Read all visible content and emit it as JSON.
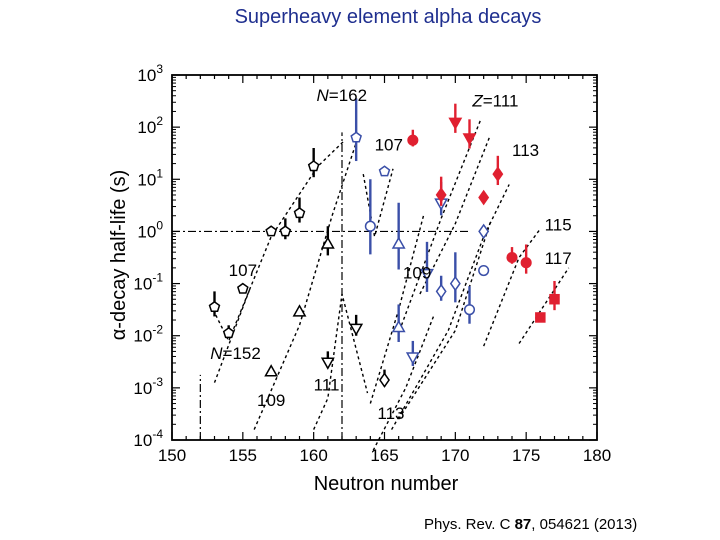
{
  "slide": {
    "title": "Superheavy element alpha decays",
    "citation_prefix": "Phys. Rev. C ",
    "citation_volume": "87",
    "citation_suffix": ", 054621 (2013)"
  },
  "colors": {
    "black": "#000000",
    "blue": "#3a4fa8",
    "red": "#e02030"
  },
  "chart_data": {
    "type": "scatter",
    "title": "",
    "xlabel": "Neutron number",
    "ylabel": "α-decay half-life (s)",
    "xlim": [
      150,
      180
    ],
    "ylim_log10": [
      -4,
      3
    ],
    "yscale": "log",
    "xticks": [
      150,
      155,
      160,
      165,
      170,
      175,
      180
    ],
    "yticks": [
      {
        "base": "10",
        "exp": "-4",
        "v": -4
      },
      {
        "base": "10",
        "exp": "-3",
        "v": -3
      },
      {
        "base": "10",
        "exp": "-2",
        "v": -2
      },
      {
        "base": "10",
        "exp": "-1",
        "v": -1
      },
      {
        "base": "10",
        "exp": "0",
        "v": 0
      },
      {
        "base": "10",
        "exp": "1",
        "v": 1
      },
      {
        "base": "10",
        "exp": "2",
        "v": 2
      },
      {
        "base": "10",
        "exp": "3",
        "v": 3
      }
    ],
    "reference_lines": [
      {
        "axis": "y",
        "value": 1,
        "label": "",
        "extent": [
          150,
          171
        ]
      },
      {
        "axis": "x",
        "value": 162,
        "label": "N=162",
        "extent_log10": [
          -4,
          1.9
        ]
      },
      {
        "axis": "x",
        "value": 152,
        "label": "N=152",
        "extent_log10": [
          -4,
          -2.75
        ]
      }
    ],
    "trend_lines": [
      {
        "name": "107",
        "x": [
          153,
          155.5
        ],
        "ylog": [
          -2.9,
          -1.1
        ]
      },
      {
        "name": "107",
        "x": [
          152.9,
          154,
          157,
          160.3,
          162.2
        ],
        "ylog": [
          -1.5,
          -2.1,
          -0.1,
          1.25,
          1.75
        ]
      },
      {
        "name": "107",
        "x": [
          163.5,
          164.3,
          165.6
        ],
        "ylog": [
          1.1,
          -0.1,
          1.2
        ]
      },
      {
        "name": "109",
        "x": [
          155.8,
          159,
          161.3,
          163
        ],
        "ylog": [
          -3.8,
          -1.8,
          0.3,
          1.7
        ]
      },
      {
        "name": "111",
        "x": [
          160,
          161,
          162,
          163.8
        ],
        "ylog": [
          -3.8,
          -3.2,
          -1.2,
          -3.1
        ]
      },
      {
        "name": "111",
        "x": [
          164,
          166,
          167.8
        ],
        "ylog": [
          -3.3,
          -1.5,
          0.35
        ]
      },
      {
        "name": "111",
        "x": [
          166.2,
          169,
          171.8
        ],
        "ylog": [
          -1.8,
          0.25,
          2.15
        ]
      },
      {
        "name": "113",
        "x": [
          164.2,
          166.5,
          168.5
        ],
        "ylog": [
          -4.2,
          -3,
          -1.6
        ]
      },
      {
        "name": "113",
        "x": [
          167.5,
          170,
          172.4
        ],
        "ylog": [
          -1.2,
          0.15,
          1.8
        ]
      },
      {
        "name": "113",
        "x": [
          165.5,
          169.5,
          172,
          173.8
        ],
        "ylog": [
          -3.8,
          -1.9,
          -0.1,
          0.9
        ]
      },
      {
        "name": "115",
        "x": [
          166,
          170,
          172.5
        ],
        "ylog": [
          -3.6,
          -1.9,
          0.2
        ]
      },
      {
        "name": "115",
        "x": [
          172,
          174.5,
          176
        ],
        "ylog": [
          -2.2,
          -0.5,
          0.05
        ]
      },
      {
        "name": "117",
        "x": [
          174.5,
          178
        ],
        "ylog": [
          -2.15,
          -0.7
        ]
      }
    ],
    "series": [
      {
        "name": "107",
        "marker": "pentagon",
        "color": "black",
        "points": [
          {
            "x": 153,
            "ylog": -1.45,
            "err": 0.3
          },
          {
            "x": 154,
            "ylog": -1.95,
            "err": 0.15
          },
          {
            "x": 155,
            "ylog": -1.1,
            "err": 0
          },
          {
            "x": 157,
            "ylog": 0,
            "err": 0.1
          },
          {
            "x": 158,
            "ylog": 0,
            "err": 0.25
          },
          {
            "x": 159,
            "ylog": 0.35,
            "err": 0.3
          },
          {
            "x": 160,
            "ylog": 1.25,
            "err": 0.35
          }
        ]
      },
      {
        "name": "107",
        "marker": "pentagon",
        "color": "blue",
        "points": [
          {
            "x": 163,
            "ylog": 1.8,
            "err": 0.75
          },
          {
            "x": 165,
            "ylog": 1.15,
            "err": 0
          }
        ]
      },
      {
        "name": "107",
        "marker": "circle",
        "color": "blue",
        "points": [
          {
            "x": 164,
            "ylog": 0.1,
            "err": 0.9
          }
        ]
      },
      {
        "name": "109",
        "marker": "triangle-up",
        "color": "black",
        "points": [
          {
            "x": 157,
            "ylog": -2.7,
            "err": 0
          },
          {
            "x": 159,
            "ylog": -1.55,
            "err": 0
          },
          {
            "x": 161,
            "ylog": -0.25,
            "err": 0.35
          }
        ]
      },
      {
        "name": "109",
        "marker": "triangle-up",
        "color": "blue",
        "points": [
          {
            "x": 166,
            "ylog": -1.85,
            "err": 0.45
          },
          {
            "x": 166,
            "ylog": -0.25,
            "err": 0.8
          }
        ]
      },
      {
        "name": "111",
        "marker": "triangle-down",
        "color": "black",
        "points": [
          {
            "x": 161,
            "ylog": -2.5,
            "err": 0.2
          },
          {
            "x": 163,
            "ylog": -1.85,
            "err": 0.25
          }
        ]
      },
      {
        "name": "111",
        "marker": "triangle-down",
        "color": "blue",
        "points": [
          {
            "x": 167,
            "ylog": -2.4,
            "err": 0.3
          },
          {
            "x": 168,
            "ylog": -0.8,
            "err": 0.6
          },
          {
            "x": 169,
            "ylog": 0.55,
            "err": 0.4
          }
        ]
      },
      {
        "name": "111",
        "marker": "triangle-down",
        "color": "red",
        "points": [
          {
            "x": 170,
            "ylog": 2.1,
            "err": 0.35
          },
          {
            "x": 171,
            "ylog": 1.8,
            "err": 0.35
          }
        ]
      },
      {
        "name": "113",
        "marker": "diamond",
        "color": "black",
        "points": [
          {
            "x": 165,
            "ylog": -2.85,
            "err": 0.2
          }
        ]
      },
      {
        "name": "113",
        "marker": "diamond",
        "color": "blue",
        "points": [
          {
            "x": 169,
            "ylog": -1.15,
            "err": 0.3
          },
          {
            "x": 170,
            "ylog": -1,
            "err": 0.6
          },
          {
            "x": 172,
            "ylog": 0,
            "err": 0
          }
        ]
      },
      {
        "name": "113",
        "marker": "diamond",
        "color": "red",
        "points": [
          {
            "x": 169,
            "ylog": 0.7,
            "err": 0.35
          },
          {
            "x": 172,
            "ylog": 0.65,
            "err": 0
          },
          {
            "x": 173,
            "ylog": 1.1,
            "err": 0.35
          }
        ]
      },
      {
        "name": "115",
        "marker": "circle",
        "color": "blue",
        "points": [
          {
            "x": 171,
            "ylog": -1.5,
            "err": 0.45
          },
          {
            "x": 172,
            "ylog": -0.75,
            "err": 0
          }
        ]
      },
      {
        "name": "115",
        "marker": "circle",
        "color": "red",
        "points": [
          {
            "x": 167,
            "ylog": 1.75,
            "err": 0.2
          },
          {
            "x": 174,
            "ylog": -0.5,
            "err": 0.2
          },
          {
            "x": 175,
            "ylog": -0.6,
            "err": 0.35
          }
        ]
      },
      {
        "name": "117",
        "marker": "square",
        "color": "red",
        "points": [
          {
            "x": 176,
            "ylog": -1.65,
            "err": 0
          },
          {
            "x": 177,
            "ylog": -1.3,
            "err": 0.35
          }
        ]
      }
    ],
    "annotations": [
      {
        "text": "N=162",
        "x": 160.2,
        "ylog": 2.5,
        "italic_prefix": "N"
      },
      {
        "text": "Z=111",
        "x": 171.2,
        "ylog": 2.4,
        "italic_prefix": "Z"
      },
      {
        "text": "107",
        "x": 164.3,
        "ylog": 1.55,
        "italic_prefix": ""
      },
      {
        "text": "113",
        "x": 174,
        "ylog": 1.45,
        "italic_prefix": ""
      },
      {
        "text": "115",
        "x": 176.3,
        "ylog": 0.02,
        "italic_prefix": ""
      },
      {
        "text": "107",
        "x": 154,
        "ylog": -0.85,
        "italic_prefix": ""
      },
      {
        "text": "109",
        "x": 166.3,
        "ylog": -0.9,
        "italic_prefix": ""
      },
      {
        "text": "117",
        "x": 176.3,
        "ylog": -0.62,
        "italic_prefix": ""
      },
      {
        "text": "N=152",
        "x": 152.7,
        "ylog": -2.45,
        "italic_prefix": "N"
      },
      {
        "text": "109",
        "x": 156,
        "ylog": -3.35,
        "italic_prefix": ""
      },
      {
        "text": "111",
        "x": 160,
        "ylog": -3.05,
        "italic_prefix": ""
      },
      {
        "text": "113",
        "x": 164.5,
        "ylog": -3.6,
        "italic_prefix": ""
      }
    ]
  }
}
